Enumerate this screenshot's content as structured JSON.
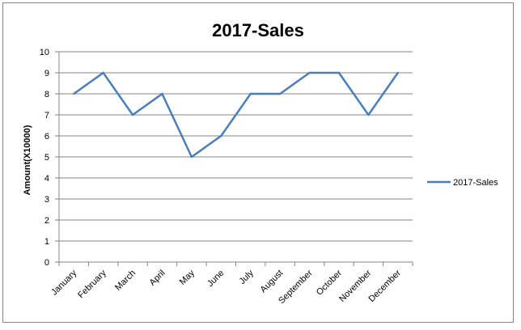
{
  "chart_data": {
    "type": "line",
    "title": "2017-Sales",
    "ylabel": "Amount(X10000)",
    "xlabel": "",
    "categories": [
      "January",
      "February",
      "March",
      "April",
      "May",
      "June",
      "July",
      "August",
      "September",
      "October",
      "November",
      "December"
    ],
    "series": [
      {
        "name": "2017-Sales",
        "values": [
          8,
          9,
          7,
          8,
          5,
          6,
          8,
          8,
          9,
          9,
          7,
          9
        ],
        "color": "#4a7ebb"
      }
    ],
    "ylim": [
      0,
      10
    ],
    "yticks": [
      0,
      1,
      2,
      3,
      4,
      5,
      6,
      7,
      8,
      9,
      10
    ],
    "grid": true,
    "gridline_color": "#868686",
    "legend_placement": "right"
  }
}
